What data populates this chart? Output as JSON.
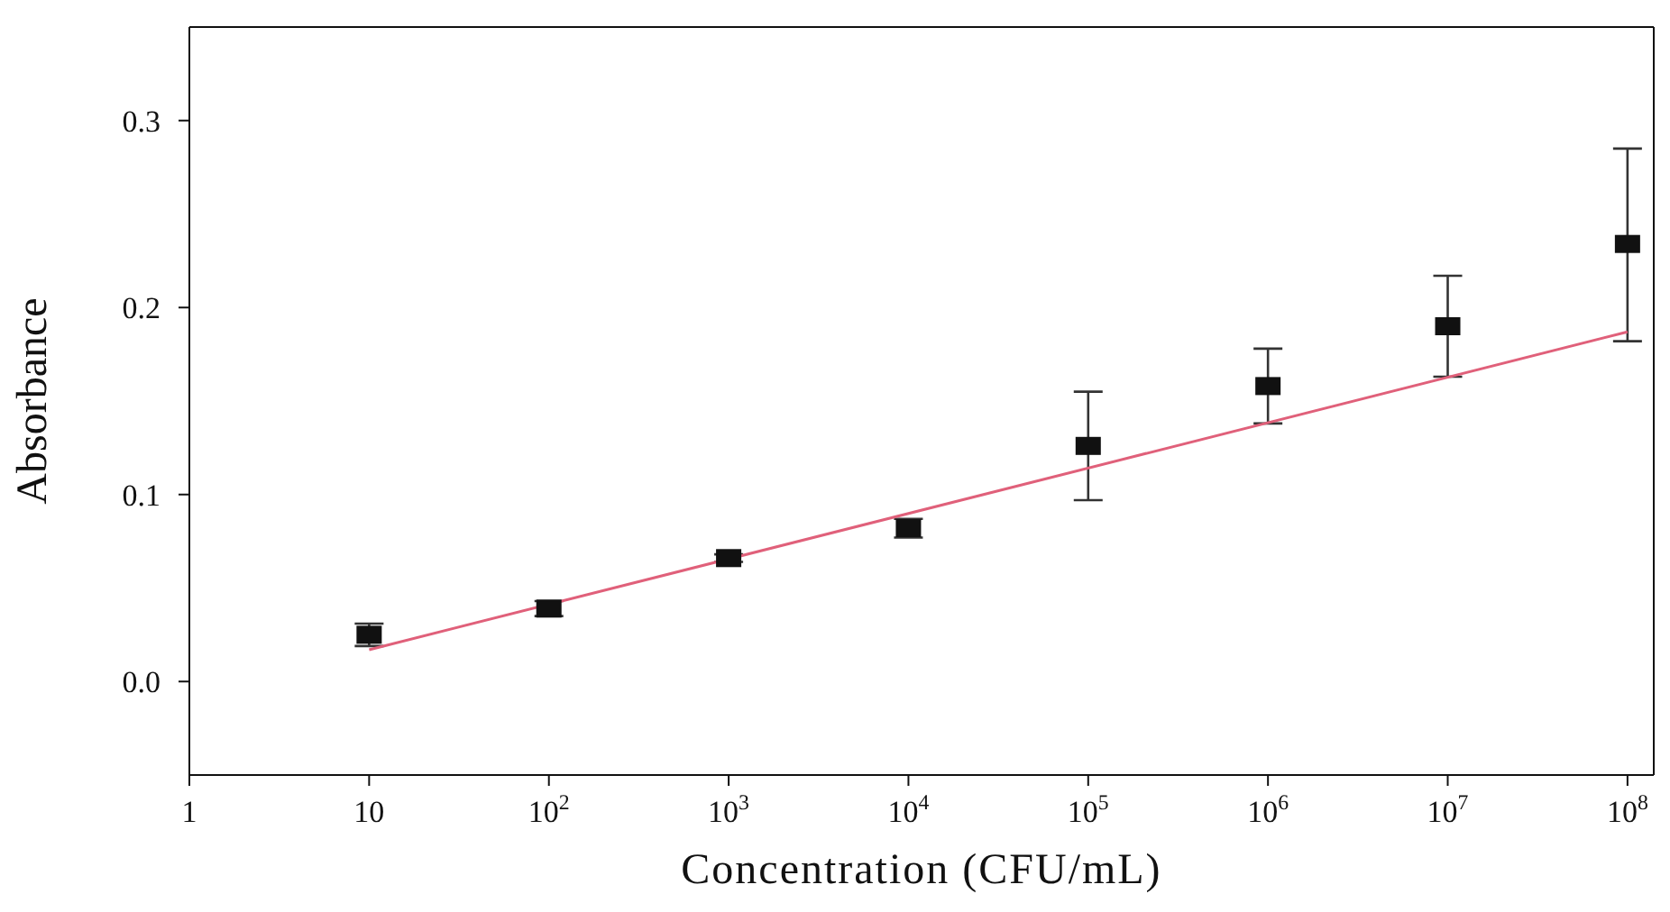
{
  "chart_data": {
    "type": "scatter",
    "xlabel": "Concentration (CFU/mL)",
    "ylabel": "Absorbance",
    "log": "x",
    "xlim": [
      1,
      140000000
    ],
    "ylim": [
      -0.05,
      0.35
    ],
    "xticks": [
      1,
      10,
      {
        "value": 100,
        "label": "10$^{2}$"
      },
      {
        "value": 1000,
        "label": "10$^{3}$"
      },
      {
        "value": 10000,
        "label": "10$^{4}$"
      },
      {
        "value": 100000,
        "label": "10$^{5}$"
      },
      {
        "value": 1000000,
        "label": "10$^{6}$"
      },
      {
        "value": 10000000,
        "label": "10$^{7}$"
      },
      {
        "value": 100000000,
        "label": "10$^{8}$"
      }
    ],
    "yticks": [
      {
        "value": 0,
        "label": "0.0"
      },
      0.1,
      0.2,
      0.3
    ],
    "series": [
      {
        "color": "#111111",
        "marker": "square",
        "x": [
          10,
          100,
          1000,
          10000,
          100000,
          1000000,
          10000000,
          100000000
        ],
        "values": [
          0.025,
          0.039,
          0.066,
          0.082,
          0.126,
          0.158,
          0.19,
          0.234
        ],
        "errors": [
          0.006,
          0.004,
          0.002,
          0.005,
          0.029,
          0.02,
          0.027,
          [
            0.182,
            0.285
          ]
        ]
      },
      {
        "type": "line",
        "color": "#e0607a",
        "line_style": "solid",
        "x": [
          10,
          100000000
        ],
        "values": [
          0.017,
          0.187
        ]
      }
    ]
  }
}
